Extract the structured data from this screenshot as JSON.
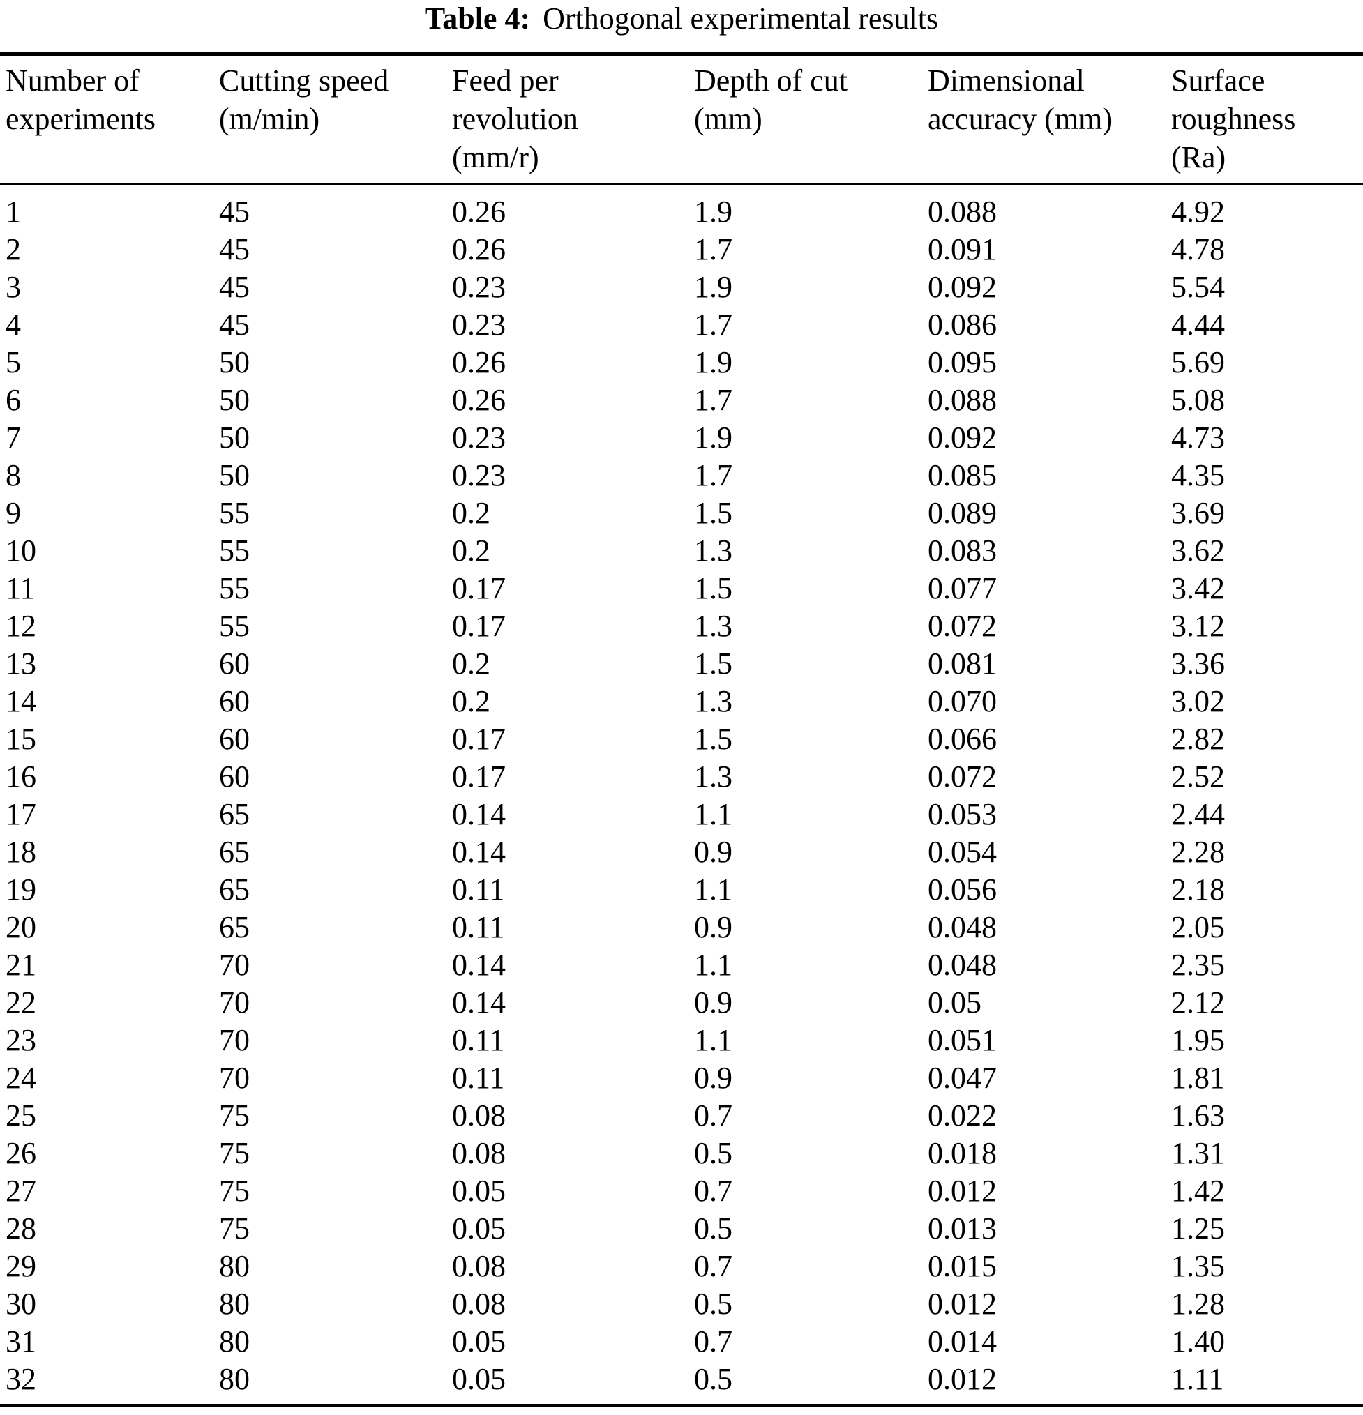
{
  "title": {
    "label": "Table 4:",
    "text": "Orthogonal experimental results"
  },
  "table": {
    "headers": [
      {
        "lines": [
          "Number of",
          "experiments"
        ]
      },
      {
        "lines": [
          "Cutting speed",
          "(m/min)"
        ]
      },
      {
        "lines": [
          "Feed per",
          "revolution",
          "(mm/r)"
        ]
      },
      {
        "lines": [
          "Depth of cut",
          "(mm)"
        ]
      },
      {
        "lines": [
          "Dimensional",
          "accuracy (mm)"
        ]
      },
      {
        "lines": [
          "Surface",
          "roughness",
          "(Ra)"
        ]
      }
    ],
    "rows": [
      [
        "1",
        "45",
        "0.26",
        "1.9",
        "0.088",
        "4.92"
      ],
      [
        "2",
        "45",
        "0.26",
        "1.7",
        "0.091",
        "4.78"
      ],
      [
        "3",
        "45",
        "0.23",
        "1.9",
        "0.092",
        "5.54"
      ],
      [
        "4",
        "45",
        "0.23",
        "1.7",
        "0.086",
        "4.44"
      ],
      [
        "5",
        "50",
        "0.26",
        "1.9",
        "0.095",
        "5.69"
      ],
      [
        "6",
        "50",
        "0.26",
        "1.7",
        "0.088",
        "5.08"
      ],
      [
        "7",
        "50",
        "0.23",
        "1.9",
        "0.092",
        "4.73"
      ],
      [
        "8",
        "50",
        "0.23",
        "1.7",
        "0.085",
        "4.35"
      ],
      [
        "9",
        "55",
        "0.2",
        "1.5",
        "0.089",
        "3.69"
      ],
      [
        "10",
        "55",
        "0.2",
        "1.3",
        "0.083",
        "3.62"
      ],
      [
        "11",
        "55",
        "0.17",
        "1.5",
        "0.077",
        "3.42"
      ],
      [
        "12",
        "55",
        "0.17",
        "1.3",
        "0.072",
        "3.12"
      ],
      [
        "13",
        "60",
        "0.2",
        "1.5",
        "0.081",
        "3.36"
      ],
      [
        "14",
        "60",
        "0.2",
        "1.3",
        "0.070",
        "3.02"
      ],
      [
        "15",
        "60",
        "0.17",
        "1.5",
        "0.066",
        "2.82"
      ],
      [
        "16",
        "60",
        "0.17",
        "1.3",
        "0.072",
        "2.52"
      ],
      [
        "17",
        "65",
        "0.14",
        "1.1",
        "0.053",
        "2.44"
      ],
      [
        "18",
        "65",
        "0.14",
        "0.9",
        "0.054",
        "2.28"
      ],
      [
        "19",
        "65",
        "0.11",
        "1.1",
        "0.056",
        "2.18"
      ],
      [
        "20",
        "65",
        "0.11",
        "0.9",
        "0.048",
        "2.05"
      ],
      [
        "21",
        "70",
        "0.14",
        "1.1",
        "0.048",
        "2.35"
      ],
      [
        "22",
        "70",
        "0.14",
        "0.9",
        "0.05",
        "2.12"
      ],
      [
        "23",
        "70",
        "0.11",
        "1.1",
        "0.051",
        "1.95"
      ],
      [
        "24",
        "70",
        "0.11",
        "0.9",
        "0.047",
        "1.81"
      ],
      [
        "25",
        "75",
        "0.08",
        "0.7",
        "0.022",
        "1.63"
      ],
      [
        "26",
        "75",
        "0.08",
        "0.5",
        "0.018",
        "1.31"
      ],
      [
        "27",
        "75",
        "0.05",
        "0.7",
        "0.012",
        "1.42"
      ],
      [
        "28",
        "75",
        "0.05",
        "0.5",
        "0.013",
        "1.25"
      ],
      [
        "29",
        "80",
        "0.08",
        "0.7",
        "0.015",
        "1.35"
      ],
      [
        "30",
        "80",
        "0.08",
        "0.5",
        "0.012",
        "1.28"
      ],
      [
        "31",
        "80",
        "0.05",
        "0.7",
        "0.014",
        "1.40"
      ],
      [
        "32",
        "80",
        "0.05",
        "0.5",
        "0.012",
        "1.11"
      ]
    ]
  },
  "colors": {
    "background": "#ffffff",
    "text": "#000000",
    "rule": "#000000"
  }
}
